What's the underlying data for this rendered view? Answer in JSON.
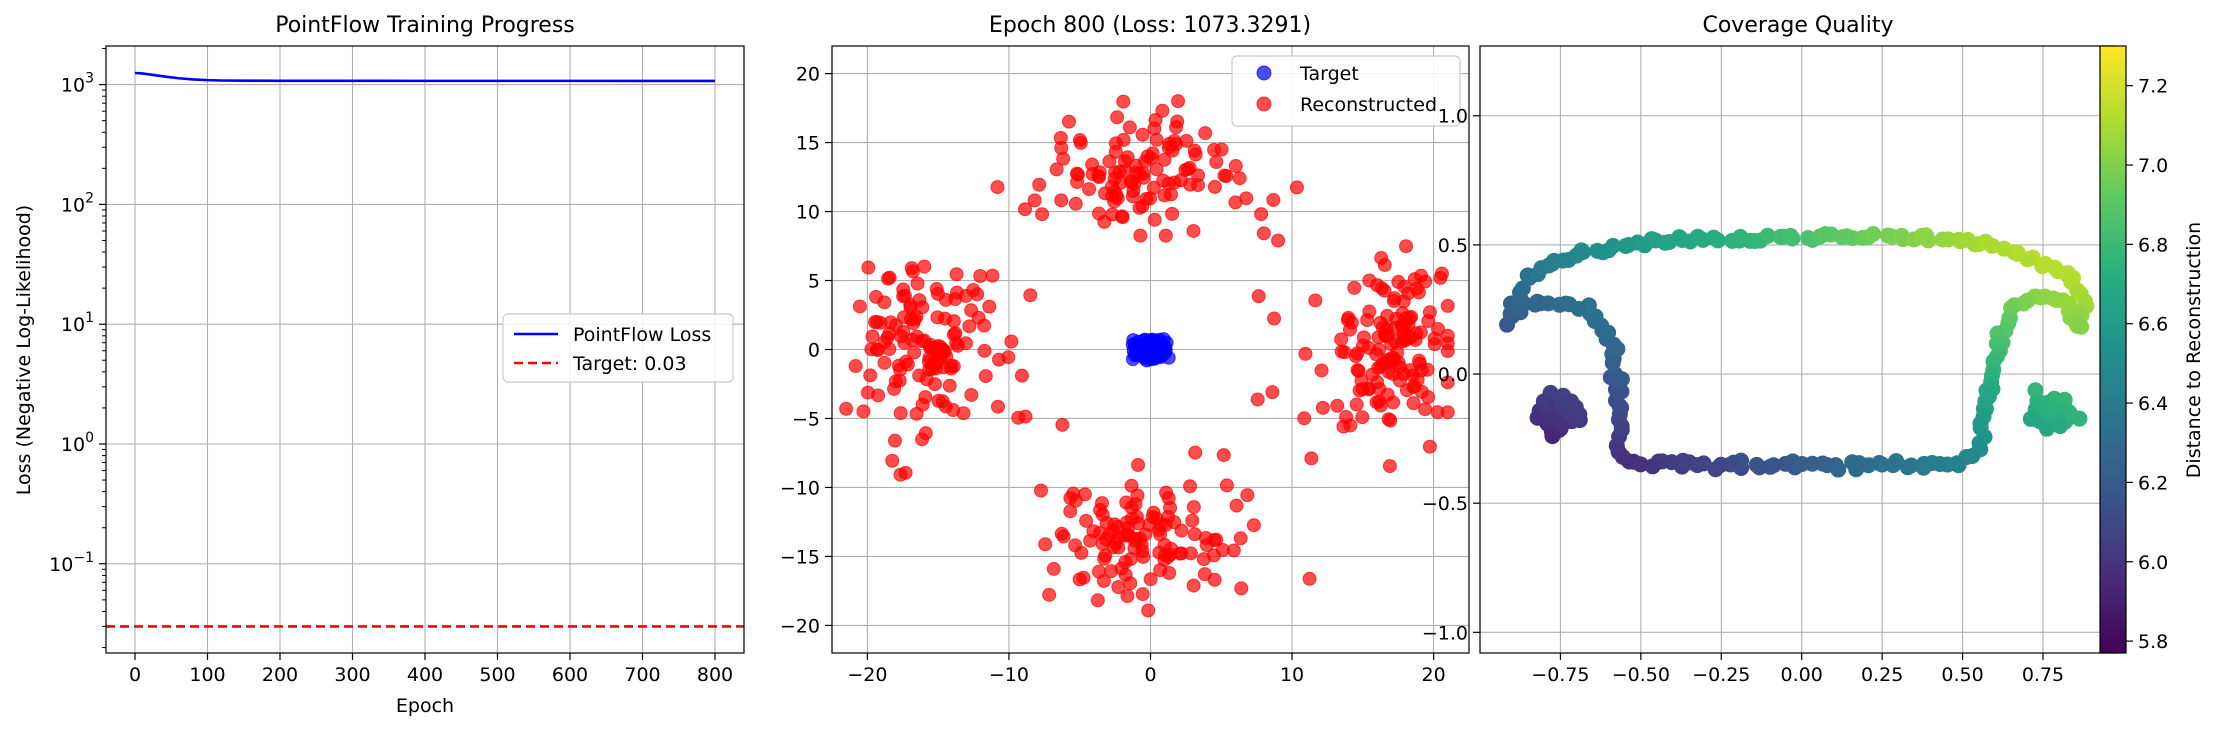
{
  "chart_data": [
    {
      "type": "line",
      "title": "PointFlow Training Progress",
      "xlabel": "Epoch",
      "ylabel": "Loss (Negative Log-Likelihood)",
      "yscale": "log",
      "xlim": [
        -40,
        840
      ],
      "ylim": [
        0.018,
        2100
      ],
      "xticks": [
        0,
        100,
        200,
        300,
        400,
        500,
        600,
        700,
        800
      ],
      "yticks": [
        {
          "value": 0.1,
          "base": "10",
          "exp": "−1"
        },
        {
          "value": 1,
          "base": "10",
          "exp": "0"
        },
        {
          "value": 10,
          "base": "10",
          "exp": "1"
        },
        {
          "value": 100,
          "base": "10",
          "exp": "2"
        },
        {
          "value": 1000,
          "base": "10",
          "exp": "3"
        }
      ],
      "grid": true,
      "legend_position": "center-right",
      "series": [
        {
          "name": "PointFlow Loss",
          "color": "#0000ff",
          "style": "solid",
          "x": [
            0,
            10,
            20,
            40,
            60,
            80,
            100,
            120,
            150,
            200,
            300,
            400,
            500,
            600,
            700,
            800
          ],
          "y": [
            1250,
            1240,
            1215,
            1170,
            1130,
            1105,
            1090,
            1082,
            1078,
            1076,
            1075,
            1074,
            1074,
            1074,
            1073.5,
            1073.3
          ]
        },
        {
          "name": "Target: 0.03",
          "color": "#ff0000",
          "style": "dashed",
          "hline": 0.03
        }
      ]
    },
    {
      "type": "scatter",
      "title": "Epoch 800 (Loss: 1073.3291)",
      "xlim": [
        -22.5,
        22.5
      ],
      "ylim": [
        -22,
        22
      ],
      "xticks": [
        -20,
        -10,
        0,
        10,
        20
      ],
      "xtick_labels": [
        "−20",
        "−10",
        "0",
        "10",
        "20"
      ],
      "yticks": [
        -20,
        -15,
        -10,
        -5,
        0,
        5,
        10,
        15,
        20
      ],
      "ytick_labels": [
        "−20",
        "−15",
        "−10",
        "−5",
        "0",
        "5",
        "10",
        "15",
        "20"
      ],
      "grid": true,
      "legend_position": "top-right",
      "series": [
        {
          "name": "Target",
          "color": "#0000ff",
          "count": 60,
          "description": "tight cluster around (0, 0), x within ±1.4, y within ±0.9"
        },
        {
          "name": "Reconstructed",
          "color": "#ff0000",
          "count": 520,
          "description": "four lobes: left (-20..-12, -7..8), right (12..21, -7..8), top (-7..8, 9..17), bottom (-7..8, -18..-10) plus sparse ring points"
        }
      ]
    },
    {
      "type": "scatter",
      "title": "Coverage Quality",
      "xlim": [
        -1.0,
        0.98
      ],
      "ylim": [
        -1.08,
        1.27
      ],
      "xticks": [
        -0.75,
        -0.5,
        -0.25,
        0,
        0.25,
        0.5,
        0.75
      ],
      "xtick_labels": [
        "−0.75",
        "−0.50",
        "−0.25",
        "0.00",
        "0.25",
        "0.50",
        "0.75"
      ],
      "yticks": [
        -1.0,
        -0.5,
        0.0,
        0.5,
        1.0
      ],
      "ytick_labels": [
        "−1.0",
        "−0.5",
        "0.0",
        "0.5",
        "1.0"
      ],
      "grid": true,
      "colormap": "viridis",
      "colorbar": {
        "label": "Distance to Reconstruction",
        "range": [
          5.77,
          7.3
        ],
        "ticks": [
          5.8,
          6.0,
          6.2,
          6.4,
          6.6,
          6.8,
          7.0,
          7.2
        ],
        "tick_labels": [
          "5.8",
          "6.0",
          "6.2",
          "6.4",
          "6.6",
          "6.8",
          "7.0",
          "7.2"
        ]
      },
      "description": "closed rounded-rectangle outline of points spanning x -0.9..0.9, y -0.35..0.55 plus two dense blobs at (-0.75,-0.15) and (0.78,-0.15); color increases toward upper right"
    }
  ]
}
